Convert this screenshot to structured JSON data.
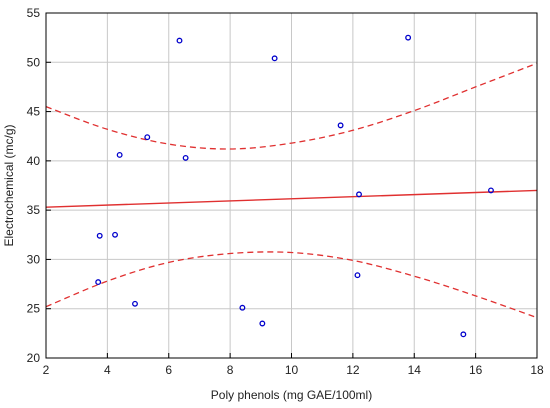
{
  "chart_data": {
    "type": "scatter",
    "title": "",
    "xlabel": "Poly phenols  (mg GAE/100ml)",
    "ylabel": "Electrochemical  (mc/g)",
    "xlim": [
      2,
      18
    ],
    "ylim": [
      20,
      55
    ],
    "xticks": [
      2,
      4,
      6,
      8,
      10,
      12,
      14,
      16,
      18
    ],
    "yticks": [
      20,
      25,
      30,
      35,
      40,
      45,
      50,
      55
    ],
    "grid": true,
    "legend": "none",
    "colors": {
      "points": "#0000cc",
      "fit_line": "#e03030",
      "confidence_band": "#e03030",
      "grid": "#c8c8c8",
      "frame": "#000000"
    },
    "points": [
      {
        "x": 3.7,
        "y": 27.7
      },
      {
        "x": 3.75,
        "y": 32.4
      },
      {
        "x": 4.25,
        "y": 32.5
      },
      {
        "x": 4.4,
        "y": 40.6
      },
      {
        "x": 4.9,
        "y": 25.5
      },
      {
        "x": 5.3,
        "y": 42.4
      },
      {
        "x": 6.35,
        "y": 52.2
      },
      {
        "x": 6.55,
        "y": 40.3
      },
      {
        "x": 8.4,
        "y": 25.1
      },
      {
        "x": 9.05,
        "y": 23.5
      },
      {
        "x": 9.45,
        "y": 50.4
      },
      {
        "x": 11.6,
        "y": 43.6
      },
      {
        "x": 12.15,
        "y": 28.4
      },
      {
        "x": 12.2,
        "y": 36.6
      },
      {
        "x": 13.8,
        "y": 52.5
      },
      {
        "x": 15.6,
        "y": 22.4
      },
      {
        "x": 16.5,
        "y": 37.0
      }
    ],
    "fit_line": {
      "x": [
        2,
        18
      ],
      "y": [
        35.3,
        37.0
      ]
    },
    "upper_band": {
      "x": [
        2,
        4,
        6,
        8,
        10,
        12,
        14,
        16,
        18
      ],
      "y": [
        45.5,
        43.2,
        41.7,
        41.2,
        41.8,
        43.1,
        45.1,
        47.5,
        49.9
      ]
    },
    "lower_band": {
      "x": [
        2,
        4,
        6,
        8,
        10,
        12,
        14,
        16,
        18
      ],
      "y": [
        25.2,
        27.8,
        29.7,
        30.6,
        30.7,
        29.9,
        28.3,
        26.3,
        24.1
      ]
    }
  }
}
